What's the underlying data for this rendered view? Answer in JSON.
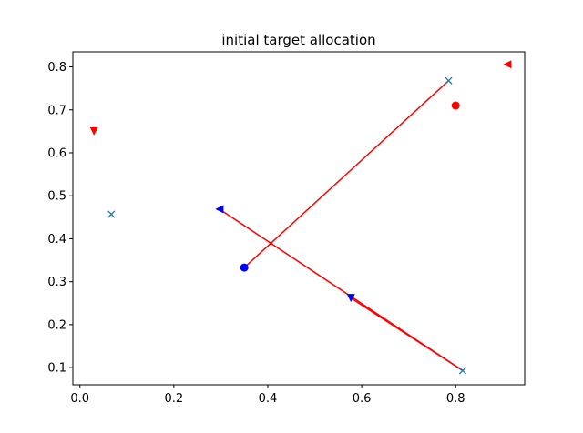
{
  "chart_data": {
    "type": "scatter",
    "title": "initial target allocation",
    "xlabel": "",
    "ylabel": "",
    "xlim": [
      -0.015,
      0.947
    ],
    "ylim": [
      0.06,
      0.835
    ],
    "x_ticks": [
      0.0,
      0.2,
      0.4,
      0.6,
      0.8
    ],
    "x_tick_labels": [
      "0.0",
      "0.2",
      "0.4",
      "0.6",
      "0.8"
    ],
    "y_ticks": [
      0.1,
      0.2,
      0.3,
      0.4,
      0.5,
      0.6,
      0.7,
      0.8
    ],
    "y_tick_labels": [
      "0.1",
      "0.2",
      "0.3",
      "0.4",
      "0.5",
      "0.6",
      "0.7",
      "0.8"
    ],
    "grid": false,
    "targets": {
      "color": "#1f77b4",
      "marker": "x",
      "points": [
        {
          "x": 0.067,
          "y": 0.457
        },
        {
          "x": 0.785,
          "y": 0.768
        },
        {
          "x": 0.815,
          "y": 0.093
        }
      ]
    },
    "agents_blue": {
      "color": "#0000ff",
      "points": [
        {
          "x": 0.35,
          "y": 0.333,
          "marker": "circle"
        },
        {
          "x": 0.297,
          "y": 0.469,
          "marker": "triangle-left"
        },
        {
          "x": 0.577,
          "y": 0.262,
          "marker": "triangle-down"
        }
      ]
    },
    "agents_red": {
      "color": "#ff0000",
      "points": [
        {
          "x": 0.03,
          "y": 0.65,
          "marker": "triangle-down"
        },
        {
          "x": 0.8,
          "y": 0.71,
          "marker": "circle"
        },
        {
          "x": 0.91,
          "y": 0.806,
          "marker": "triangle-left"
        }
      ]
    },
    "allocation_lines": {
      "color": "#ff0000",
      "segments": [
        {
          "from": [
            0.35,
            0.333
          ],
          "to": [
            0.785,
            0.768
          ]
        },
        {
          "from": [
            0.297,
            0.469
          ],
          "to": [
            0.815,
            0.093
          ]
        },
        {
          "from": [
            0.577,
            0.262
          ],
          "to": [
            0.815,
            0.093
          ]
        }
      ]
    }
  }
}
